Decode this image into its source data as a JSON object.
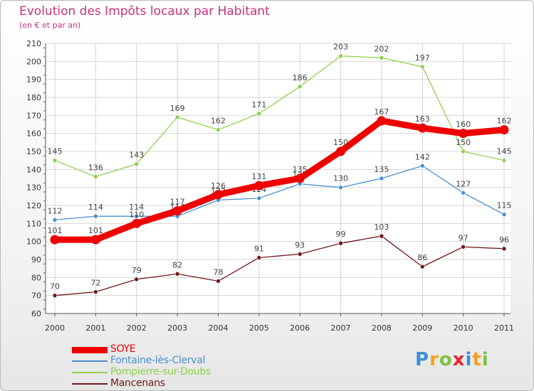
{
  "title": "Evolution des Impôts locaux par Habitant",
  "subtitle": "(en € et par an)",
  "logo": {
    "text": "Proxiti",
    "letters": [
      {
        "ch": "P",
        "color": "#3a8fd6"
      },
      {
        "ch": "r",
        "color": "#f4a21c"
      },
      {
        "ch": "o",
        "color": "#7cc242"
      },
      {
        "ch": "x",
        "color": "#e8282b"
      },
      {
        "ch": "i",
        "color": "#3a8fd6"
      },
      {
        "ch": "t",
        "color": "#f4a21c"
      },
      {
        "ch": "i",
        "color": "#7cc242"
      }
    ]
  },
  "chart_data": {
    "type": "line",
    "x": [
      "2000",
      "2001",
      "2002",
      "2003",
      "2004",
      "2005",
      "2006",
      "2007",
      "2008",
      "2009",
      "2010",
      "2011"
    ],
    "ylim": [
      60,
      210
    ],
    "yticks": [
      "60",
      "70",
      "80",
      "90",
      "100",
      "110",
      "120",
      "130",
      "140",
      "150",
      "160",
      "170",
      "180",
      "190",
      "200",
      "210"
    ],
    "grid": true,
    "legend_position": "bottom-left",
    "series": [
      {
        "name": "Pompierre-sur-Doubs",
        "color": "#8fd14f",
        "values": [
          145,
          136,
          143,
          169,
          162,
          171,
          186,
          203,
          202,
          197,
          150,
          145
        ]
      },
      {
        "name": "Fontaine-lès-Clerval",
        "color": "#4b8fd0",
        "values": [
          112,
          114,
          114,
          114,
          123,
          124,
          132,
          130,
          135,
          142,
          127,
          115
        ]
      },
      {
        "name": "Mancenans",
        "color": "#6e1a1a",
        "values": [
          70,
          72,
          79,
          82,
          78,
          91,
          93,
          99,
          103,
          86,
          97,
          96
        ]
      },
      {
        "name": "SOYE",
        "color": "#ee0000",
        "values": [
          101,
          101,
          110,
          117,
          126,
          131,
          135,
          150,
          167,
          163,
          160,
          162
        ]
      }
    ],
    "data_labels": [
      {
        "series": "Pompierre-sur-Doubs",
        "labels": [
          "145",
          "136",
          "143",
          "169",
          "162",
          "171",
          "186",
          "203",
          "202",
          "197",
          "150",
          "145"
        ]
      },
      {
        "series": "Fontaine-lès-Clerval",
        "labels": [
          "112",
          "114",
          "114",
          "114",
          "123",
          "124",
          "132",
          "130",
          "135",
          "142",
          "127",
          "115"
        ]
      },
      {
        "series": "Mancenans",
        "labels": [
          "70",
          "72",
          "79",
          "82",
          "78",
          "91",
          "93",
          "99",
          "103",
          "86",
          "97",
          "96"
        ]
      },
      {
        "series": "SOYE",
        "labels": [
          "101",
          "101",
          "110",
          "117",
          "126",
          "131",
          "135",
          "150",
          "167",
          "163",
          "160",
          "162"
        ]
      }
    ]
  },
  "legend": [
    {
      "label": "SOYE",
      "color": "#ee0000",
      "style": "thick"
    },
    {
      "label": "Fontaine-lès-Clerval",
      "color": "#4b8fd0",
      "style": "thin"
    },
    {
      "label": "Pompierre-sur-Doubs",
      "color": "#8fd14f",
      "style": "thin"
    },
    {
      "label": "Mancenans",
      "color": "#6e1a1a",
      "style": "thin"
    }
  ]
}
